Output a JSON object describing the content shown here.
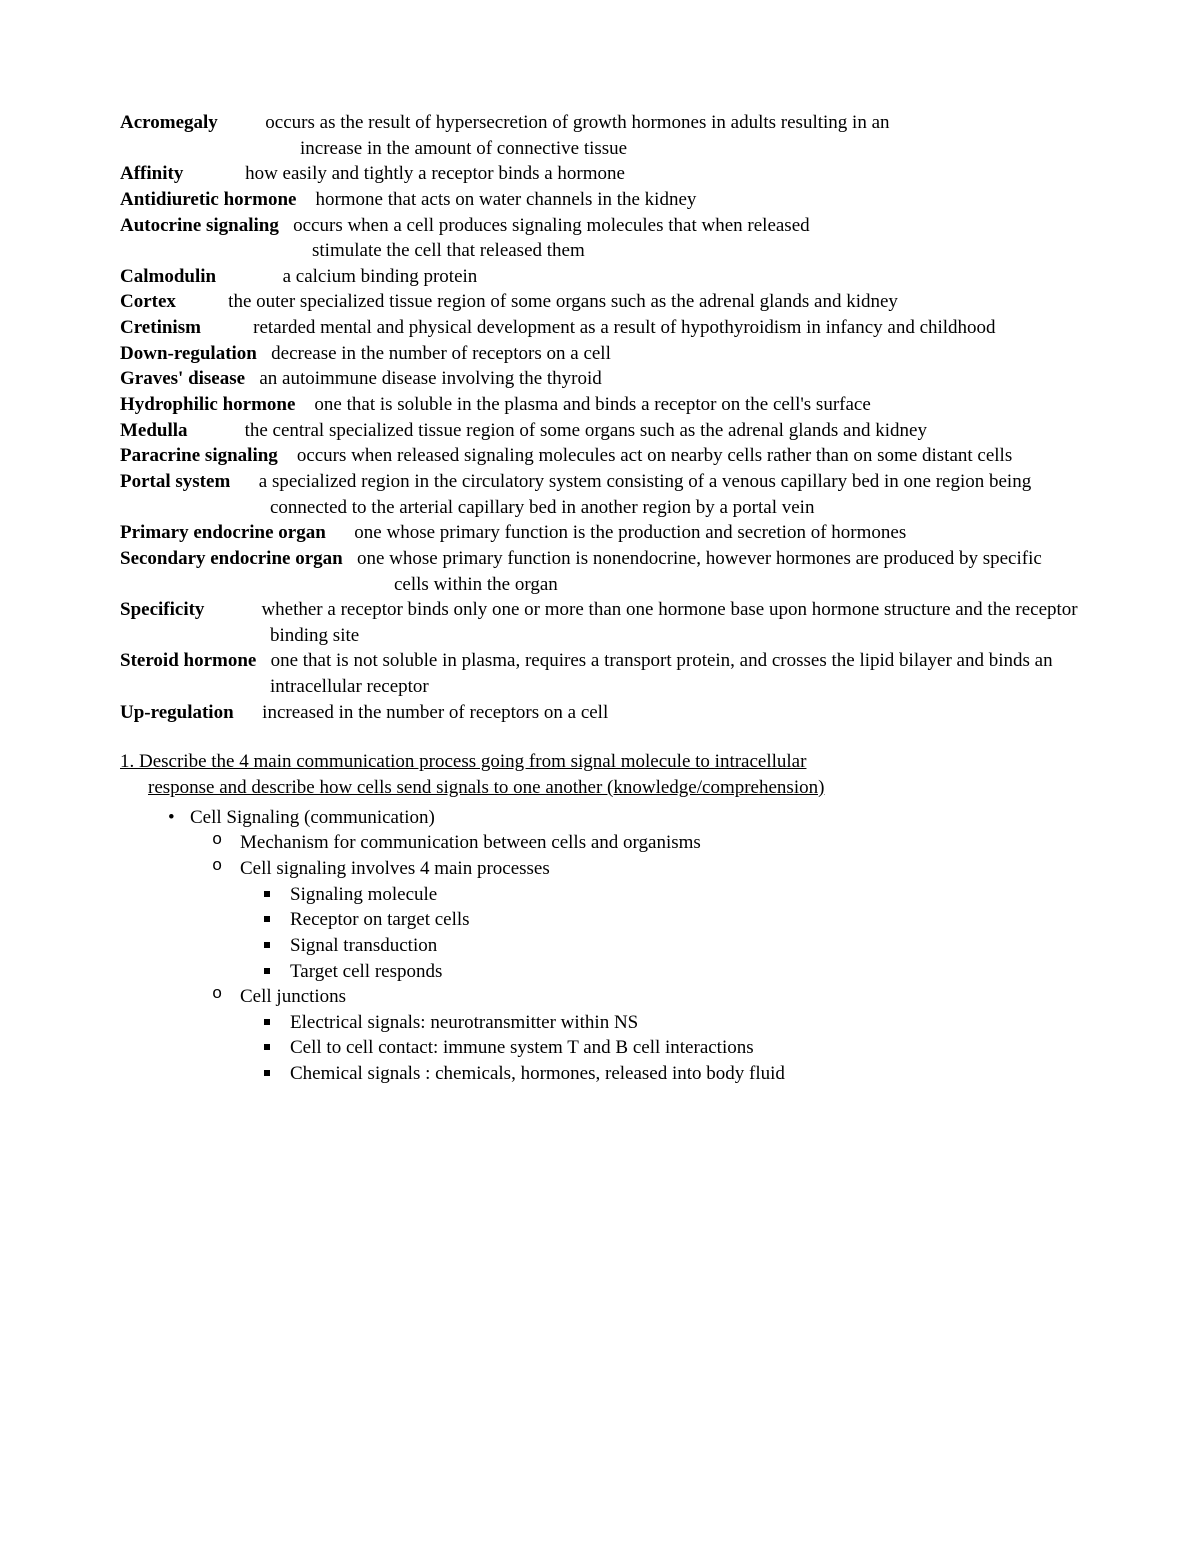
{
  "definitions": [
    {
      "term": "Acromegaly",
      "termPad": 10,
      "text": "occurs as the result of hypersecretion of growth hormones in adults resulting in an",
      "continuations": [
        {
          "indent": 180,
          "text": "increase in the amount of connective tissue"
        }
      ]
    },
    {
      "term": "Affinity",
      "termPad": 13,
      "text": "how easily and tightly a receptor binds a hormone"
    },
    {
      "term": "Antidiuretic hormone",
      "termPad": 4,
      "text": "hormone that acts on water channels in the kidney"
    },
    {
      "term": "Autocrine signaling",
      "termPad": 3,
      "text": "occurs when a cell produces signaling molecules that when released",
      "continuations": [
        {
          "indent": 192,
          "text": "stimulate the cell that released them"
        }
      ]
    },
    {
      "term": "Calmodulin",
      "termPad": 14,
      "text": "a calcium binding protein"
    },
    {
      "term": "Cortex",
      "termPad": 11,
      "text": "the outer specialized tissue region of some organs such as the adrenal glands and kidney",
      "hanging": 150
    },
    {
      "term": "Cretinism",
      "termPad": 11,
      "text": "retarded mental and physical development as a result of hypothyroidism in infancy and childhood",
      "hanging": 150
    },
    {
      "term": "Down-regulation",
      "termPad": 3,
      "text": "decrease in the number of receptors on a cell"
    },
    {
      "term": "Graves' disease",
      "termPad": 3,
      "text": "an autoimmune disease involving the thyroid"
    },
    {
      "term": "Hydrophilic hormone",
      "termPad": 4,
      "text": "one that is soluble in the plasma and binds a receptor on the cell's surface",
      "hanging": 150
    },
    {
      "term": "Medulla",
      "termPad": 12,
      "text": "the central specialized tissue region of some organs such as the adrenal glands and kidney",
      "hanging": 150
    },
    {
      "term": "Paracrine signaling",
      "termPad": 4,
      "text": "occurs when released signaling molecules act on nearby cells rather than on some distant cells",
      "hanging": 192
    },
    {
      "term": "Portal system",
      "termPad": 6,
      "text": "a specialized region in the circulatory system consisting of a venous capillary bed in one region being connected to the arterial capillary bed in another region by a portal vein",
      "hanging": 150
    },
    {
      "term": "Primary endocrine organ",
      "termPad": 6,
      "text": "one whose primary function is the production and secretion of hormones",
      "hanging": 150
    },
    {
      "term": "Secondary endocrine organ",
      "termPad": 3,
      "text": "one whose primary function is nonendocrine, however hormones are produced by specific cells within the organ",
      "hanging": 274
    },
    {
      "term": "Specificity",
      "termPad": 12,
      "text": "whether a receptor binds only one or more than one hormone base upon hormone structure and the receptor binding site",
      "hanging": 150
    },
    {
      "term": "Steroid hormone",
      "termPad": 3,
      "text": "one that is not soluble in plasma, requires a transport protein, and crosses the lipid bilayer and binds an intracellular receptor",
      "hanging": 150
    },
    {
      "term": "Up-regulation",
      "termPad": 6,
      "text": "increased in the number of receptors on a cell"
    }
  ],
  "question": {
    "line1": "1.  Describe the 4 main communication process going from signal molecule to intracellular",
    "line2": "response and describe how cells send signals to one another  (knowledge/comprehension)"
  },
  "outline": {
    "top": "Cell Signaling (communication)",
    "items": [
      {
        "text": "Mechanism for communication between cells and organisms"
      },
      {
        "text": "Cell signaling involves 4 main processes",
        "subs": [
          "Signaling molecule",
          "Receptor on target cells",
          "Signal transduction",
          "Target cell responds"
        ]
      },
      {
        "text": "Cell junctions",
        "subs": [
          "Electrical signals: neurotransmitter within NS",
          "Cell to cell contact: immune system T and B cell interactions",
          "Chemical signals : chemicals, hormones, released into body fluid"
        ]
      }
    ]
  }
}
